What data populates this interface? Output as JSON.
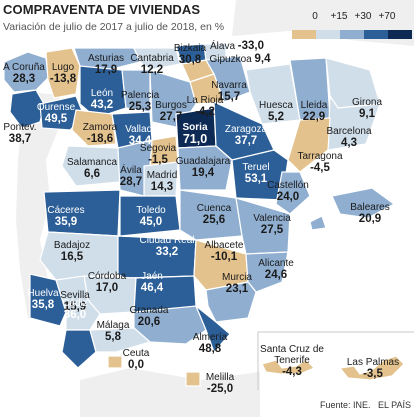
{
  "title": "COMPRAVENTA DE VIVIENDAS",
  "subtitle": "Variación de julio de 2017 a julio de 2018, en %",
  "legend": {
    "breaks": [
      "0",
      "+15",
      "+30",
      "+70"
    ],
    "colors": [
      "#e3c28d",
      "#d0deea",
      "#8faed0",
      "#2c5f97",
      "#0d2a55"
    ]
  },
  "colors": {
    "ocean": "#ffffff",
    "border": "#ffffff",
    "neighbor": "#efefef",
    "label_dark": "#1b1b1b",
    "label_light": "#ffffff"
  },
  "provinces": [
    {
      "name": "A Coruña",
      "value": "28,3"
    },
    {
      "name": "Lugo",
      "value": "-13,8"
    },
    {
      "name": "Asturias",
      "value": "17,9"
    },
    {
      "name": "Cantabria",
      "value": "12,2"
    },
    {
      "name": "Bizkaia",
      "value": "30,8"
    },
    {
      "name": "Álava",
      "value": "-33,0"
    },
    {
      "name": "Gipuzkoa",
      "value": "9,4"
    },
    {
      "name": "Navarra",
      "value": "15,7"
    },
    {
      "name": "León",
      "value": "43,2"
    },
    {
      "name": "Palencia",
      "value": "25,3"
    },
    {
      "name": "Burgos",
      "value": "27,7"
    },
    {
      "name": "La Rioja",
      "value": "-4,2"
    },
    {
      "name": "Huesca",
      "value": "5,2"
    },
    {
      "name": "Lleida",
      "value": "22,9"
    },
    {
      "name": "Girona",
      "value": "9,1"
    },
    {
      "name": "Ourense",
      "value": "49,5"
    },
    {
      "name": "Pontev.",
      "value": "38,7"
    },
    {
      "name": "Zamora",
      "value": "-18,6"
    },
    {
      "name": "Vallad.",
      "value": "34,4"
    },
    {
      "name": "Soria",
      "value": "71,0"
    },
    {
      "name": "Zaragoza",
      "value": "37,7"
    },
    {
      "name": "Barcelona",
      "value": "4,3"
    },
    {
      "name": "Salamanca",
      "value": "6,6"
    },
    {
      "name": "Segovia",
      "value": "-1,5"
    },
    {
      "name": "Ávila",
      "value": "28,7"
    },
    {
      "name": "Madrid",
      "value": "14,3"
    },
    {
      "name": "Guadalajara",
      "value": "19,4"
    },
    {
      "name": "Teruel",
      "value": "53,1"
    },
    {
      "name": "Tarragona",
      "value": "-4,5"
    },
    {
      "name": "Castellón",
      "value": "24,0"
    },
    {
      "name": "Cáceres",
      "value": "35,9"
    },
    {
      "name": "Toledo",
      "value": "45,0"
    },
    {
      "name": "Cuenca",
      "value": "25,6"
    },
    {
      "name": "Valencia",
      "value": "27,5"
    },
    {
      "name": "Baleares",
      "value": "20,9"
    },
    {
      "name": "Badajoz",
      "value": "16,5"
    },
    {
      "name": "Ciudad Real",
      "value": "33,2"
    },
    {
      "name": "Albacete",
      "value": "-10,1"
    },
    {
      "name": "Alicante",
      "value": "24,6"
    },
    {
      "name": "Córdoba",
      "value": "17,0"
    },
    {
      "name": "Jaén",
      "value": "46,4"
    },
    {
      "name": "Murcia",
      "value": "23,1"
    },
    {
      "name": "Huelva",
      "value": "35,8"
    },
    {
      "name": "Sevilla",
      "value": "15,9"
    },
    {
      "name": "Granada",
      "value": "20,6"
    },
    {
      "name": "Cádiz",
      "value": "36,0"
    },
    {
      "name": "Málaga",
      "value": "5,8"
    },
    {
      "name": "Almería",
      "value": "48,8"
    },
    {
      "name": "Ceuta",
      "value": "0,0"
    },
    {
      "name": "Melilla",
      "value": "-25,0"
    },
    {
      "name": "Santa Cruz de Tenerife",
      "value": "-4,3"
    },
    {
      "name": "Las Palmas",
      "value": "-3,5"
    }
  ],
  "footer": {
    "source": "Fuente: INE.",
    "credit": "EL PAÍS"
  }
}
